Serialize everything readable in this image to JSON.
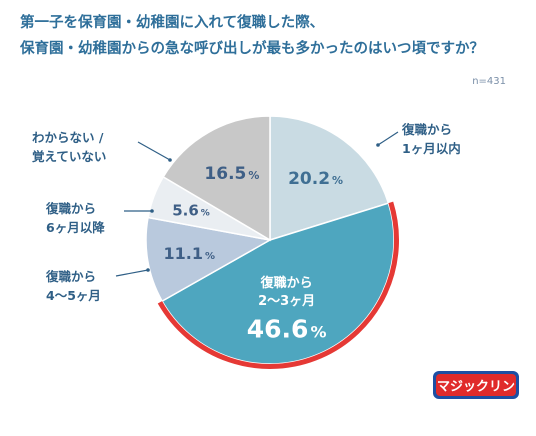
{
  "title_lines": [
    "第一子を保育園・幼稚園に入れて復職した際、",
    "保育園・幼稚園からの急な呼び出しが最も多かったのはいつ頃ですか？"
  ],
  "sample_size": "n=431",
  "brand_logo_text": "マジックリン",
  "chart_data": {
    "type": "pie",
    "title": "第一子を保育園・幼稚園に入れて復職した際、保育園・幼稚園からの急な呼び出しが最も多かったのはいつ頃ですか？",
    "slices": [
      {
        "label_lines": [
          "復職から",
          "1ヶ月以内"
        ],
        "value": 20.2,
        "value_text": "20.2",
        "unit": "%",
        "color": "#c9dbe3",
        "value_color": "#3f6f93"
      },
      {
        "label_lines": [
          "復職から",
          "2〜3ヶ月"
        ],
        "value": 46.6,
        "value_text": "46.6",
        "unit": "%",
        "color": "#4ea6bf",
        "value_color": "#ffffff",
        "highlight": true
      },
      {
        "label_lines": [
          "復職から",
          "4〜5ヶ月"
        ],
        "value": 11.1,
        "value_text": "11.1",
        "unit": "%",
        "color": "#b9c9dd",
        "value_color": "#3f5f86"
      },
      {
        "label_lines": [
          "復職から",
          "6ヶ月以降"
        ],
        "value": 5.6,
        "value_text": "5.6",
        "unit": "%",
        "color": "#eaeef2",
        "value_color": "#3f5f86"
      },
      {
        "label_lines": [
          "わからない /",
          "覚えていない"
        ],
        "value": 16.5,
        "value_text": "16.5",
        "unit": "%",
        "color": "#c8c8c8",
        "value_color": "#3f5f86"
      }
    ],
    "start": "12 o'clock",
    "direction": "clockwise",
    "highlight_border_color": "#e53935"
  }
}
